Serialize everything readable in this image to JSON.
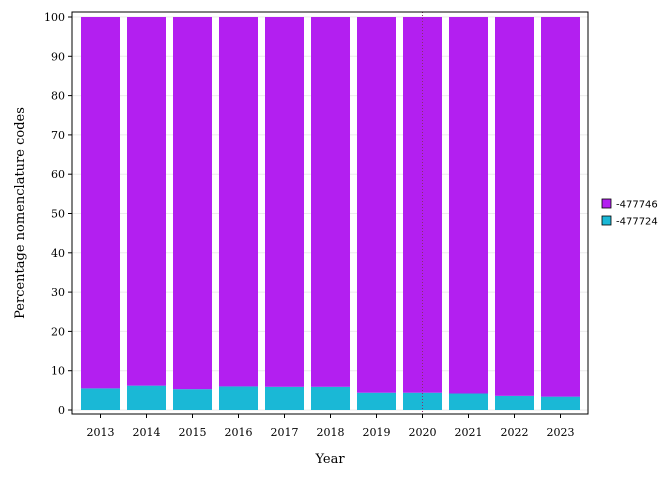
{
  "chart_data": {
    "type": "bar",
    "stacked": true,
    "categories": [
      "2013",
      "2014",
      "2015",
      "2016",
      "2017",
      "2018",
      "2019",
      "2020",
      "2021",
      "2022",
      "2023"
    ],
    "series": [
      {
        "name": "-477724",
        "color": "#1ab8d6",
        "values": [
          5.5,
          6.2,
          5.3,
          6.0,
          5.9,
          5.9,
          4.4,
          4.4,
          4.2,
          3.6,
          3.4
        ]
      },
      {
        "name": "-477746",
        "color": "#b31ff0",
        "values": [
          94.5,
          93.8,
          94.7,
          94.0,
          94.1,
          94.1,
          95.6,
          95.6,
          95.8,
          96.4,
          96.6
        ]
      }
    ],
    "xlabel": "Year",
    "ylabel": "Percentage nomenclature codes",
    "ylim": [
      0,
      100
    ],
    "yticks": [
      "0",
      "10",
      "20",
      "30",
      "40",
      "50",
      "60",
      "70",
      "80",
      "90",
      "100"
    ],
    "marker_line": "2020",
    "legend_entries": [
      "-477746",
      "-477724"
    ],
    "legend_position": "right",
    "grid": true
  }
}
